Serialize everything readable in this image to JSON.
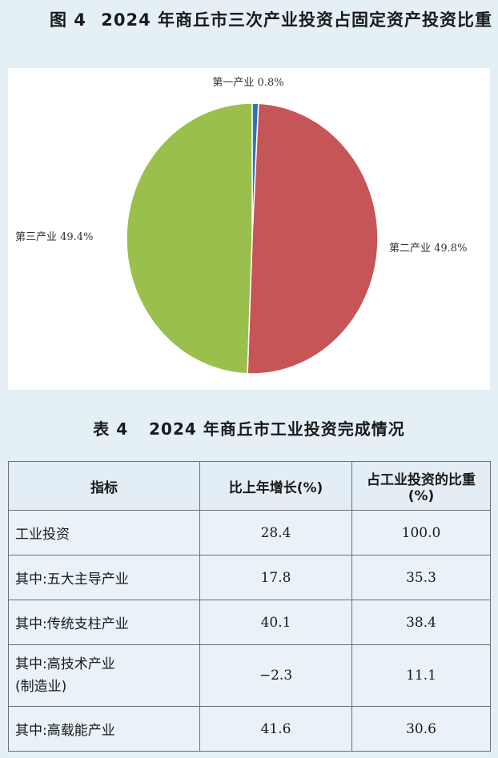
{
  "figure": {
    "number": "图 4",
    "title": "2024 年商丘市三次产业投资占固定资产投资比重"
  },
  "chart_data": {
    "type": "pie",
    "title": "2024 年商丘市三次产业投资占固定资产投资比重",
    "slices": [
      {
        "label": "第一产业",
        "value": 0.8,
        "value_label": "0.8%",
        "color": "#2f73b7"
      },
      {
        "label": "第二产业",
        "value": 49.8,
        "value_label": "49.8%",
        "color": "#c55556"
      },
      {
        "label": "第三产业",
        "value": 49.4,
        "value_label": "49.4%",
        "color": "#9bbf4c"
      }
    ],
    "start_angle": "12 o'clock",
    "direction": "clockwise"
  },
  "table": {
    "number": "表 4",
    "title": "2024 年商丘市工业投资完成情况",
    "headers": [
      "指标",
      "比上年增长(%)",
      "占工业投资的比重(%)"
    ],
    "rows": [
      {
        "name": "工业投资",
        "growth": "28.4",
        "share": "100.0"
      },
      {
        "name": "其中:五大主导产业",
        "growth": "17.8",
        "share": "35.3"
      },
      {
        "name": "其中:传统支柱产业",
        "growth": "40.1",
        "share": "38.4"
      },
      {
        "name": "其中:高技术产业",
        "name2": "(制造业)",
        "growth": "−2.3",
        "share": "11.1"
      },
      {
        "name": "其中:高载能产业",
        "growth": "41.6",
        "share": "30.6"
      }
    ]
  }
}
